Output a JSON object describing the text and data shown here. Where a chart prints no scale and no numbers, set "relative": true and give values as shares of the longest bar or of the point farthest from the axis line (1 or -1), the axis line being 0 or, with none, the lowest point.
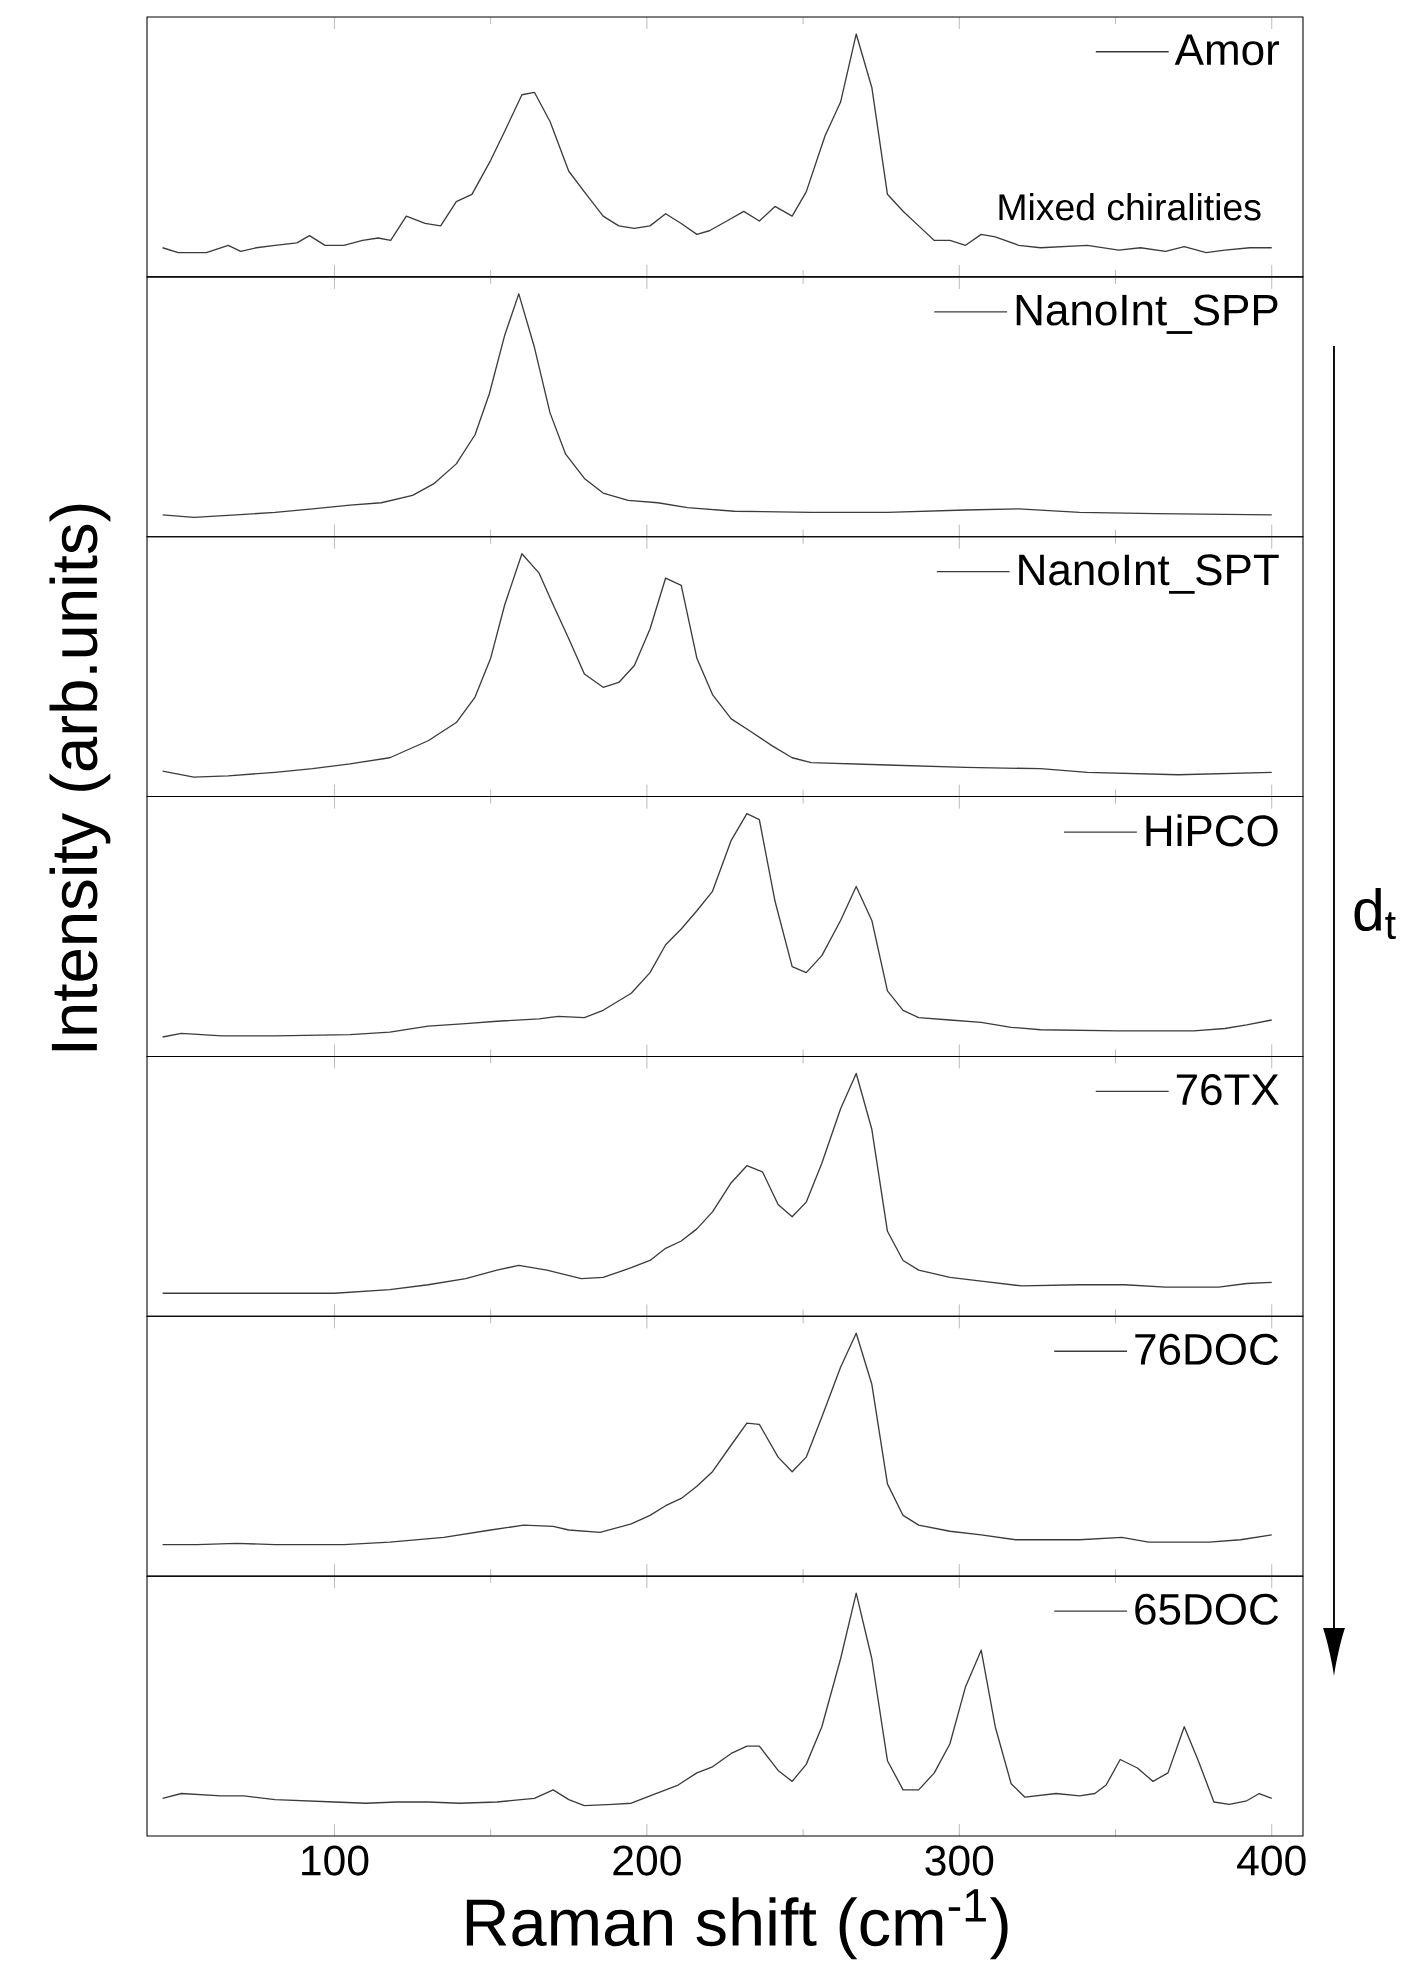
{
  "chart_data": [
    {
      "type": "line",
      "relative": true,
      "xlim": [
        40,
        410
      ],
      "xticks": [
        100,
        200,
        300,
        400
      ],
      "legend": "top right",
      "tick_labels": false,
      "annotations": [
        "Mixed chiralities"
      ],
      "series": [
        {
          "name": "Amor",
          "color": "#3c3c3c",
          "x": [
            45,
            50,
            59,
            66,
            70,
            75,
            81,
            88,
            92,
            97,
            103,
            109,
            114,
            118,
            123,
            129,
            134,
            139,
            144,
            150,
            154.5,
            160,
            164,
            169,
            175,
            180,
            186,
            191,
            196,
            201,
            206,
            211,
            216,
            220,
            225.6,
            231,
            236,
            241,
            246.5,
            251,
            257,
            262,
            267,
            272,
            277,
            282,
            287,
            292,
            297,
            302,
            307,
            311.5,
            319,
            326,
            341,
            351,
            358,
            366,
            372,
            379,
            385,
            393,
            400
          ],
          "values": [
            0.12,
            0.1,
            0.1,
            0.13,
            0.105,
            0.12,
            0.13,
            0.14,
            0.17,
            0.13,
            0.13,
            0.15,
            0.16,
            0.15,
            0.25,
            0.22,
            0.21,
            0.31,
            0.34,
            0.48,
            0.6,
            0.75,
            0.76,
            0.64,
            0.435,
            0.35,
            0.25,
            0.21,
            0.2,
            0.21,
            0.26,
            0.22,
            0.175,
            0.19,
            0.23,
            0.27,
            0.23,
            0.29,
            0.25,
            0.35,
            0.58,
            0.72,
            1.0,
            0.78,
            0.34,
            0.27,
            0.21,
            0.15,
            0.15,
            0.13,
            0.175,
            0.165,
            0.13,
            0.12,
            0.13,
            0.11,
            0.12,
            0.105,
            0.125,
            0.1,
            0.11,
            0.12,
            0.12
          ]
        }
      ]
    },
    {
      "type": "line",
      "relative": true,
      "xlim": [
        40,
        410
      ],
      "xticks": [
        100,
        200,
        300,
        400
      ],
      "legend": "top right",
      "tick_labels": false,
      "series": [
        {
          "name": "NanoInt_SPP",
          "color": "#3c3c3c",
          "x": [
            45,
            55,
            68.6,
            81,
            93,
            105,
            115,
            125,
            132,
            139,
            145,
            149.6,
            154.5,
            159,
            164,
            169,
            174,
            180,
            186,
            194,
            203.5,
            213,
            228,
            252.6,
            277,
            302,
            319,
            338.5,
            363,
            400
          ],
          "values": [
            0.09,
            0.08,
            0.09,
            0.1,
            0.115,
            0.13,
            0.14,
            0.17,
            0.22,
            0.3,
            0.42,
            0.59,
            0.83,
            1.0,
            0.78,
            0.51,
            0.34,
            0.24,
            0.18,
            0.15,
            0.14,
            0.12,
            0.105,
            0.1,
            0.1,
            0.11,
            0.115,
            0.1,
            0.095,
            0.09
          ]
        }
      ]
    },
    {
      "type": "line",
      "relative": true,
      "xlim": [
        40,
        410
      ],
      "xticks": [
        100,
        200,
        300,
        400
      ],
      "legend": "top right",
      "tick_labels": false,
      "series": [
        {
          "name": "NanoInt_SPT",
          "color": "#3c3c3c",
          "x": [
            45,
            55,
            66,
            81,
            93,
            105,
            117.7,
            130,
            139,
            145,
            150,
            154.5,
            160,
            165.5,
            170,
            175,
            180,
            186,
            191,
            196,
            201,
            206,
            211,
            216,
            221,
            227,
            233,
            240,
            246.5,
            252.6,
            277,
            302,
            326,
            341,
            370,
            400
          ],
          "values": [
            0.105,
            0.08,
            0.085,
            0.1,
            0.115,
            0.135,
            0.16,
            0.23,
            0.305,
            0.41,
            0.57,
            0.79,
            1.0,
            0.92,
            0.79,
            0.65,
            0.505,
            0.45,
            0.47,
            0.54,
            0.69,
            0.9,
            0.87,
            0.57,
            0.42,
            0.32,
            0.27,
            0.21,
            0.16,
            0.14,
            0.13,
            0.12,
            0.115,
            0.1,
            0.09,
            0.1
          ]
        }
      ]
    },
    {
      "type": "line",
      "relative": true,
      "xlim": [
        40,
        410
      ],
      "xticks": [
        100,
        200,
        300,
        400
      ],
      "legend": "top right",
      "tick_labels": false,
      "ylabel": "Intensity (arb.units)",
      "annotations": [
        "d$_{t}$"
      ],
      "series": [
        {
          "name": "HiPCO",
          "color": "#3c3c3c",
          "x": [
            45,
            51,
            64,
            81,
            105,
            117.7,
            130,
            142,
            152,
            165.5,
            171.6,
            180,
            186,
            195,
            201,
            206,
            211,
            216,
            221,
            227,
            232,
            236,
            241,
            246.5,
            251,
            256,
            262,
            267,
            272,
            277,
            282,
            287,
            297,
            307,
            316.6,
            326,
            351,
            375,
            385,
            392,
            400
          ],
          "values": [
            0.08,
            0.095,
            0.085,
            0.085,
            0.09,
            0.1,
            0.125,
            0.135,
            0.145,
            0.155,
            0.165,
            0.16,
            0.19,
            0.26,
            0.345,
            0.46,
            0.525,
            0.6,
            0.68,
            0.89,
            1.0,
            0.975,
            0.64,
            0.37,
            0.345,
            0.415,
            0.56,
            0.7,
            0.56,
            0.27,
            0.19,
            0.16,
            0.15,
            0.14,
            0.12,
            0.11,
            0.105,
            0.105,
            0.115,
            0.13,
            0.15
          ]
        }
      ]
    },
    {
      "type": "line",
      "relative": true,
      "xlim": [
        40,
        410
      ],
      "xticks": [
        100,
        200,
        300,
        400
      ],
      "legend": "top right",
      "tick_labels": false,
      "series": [
        {
          "name": "76TX",
          "color": "#3c3c3c",
          "x": [
            45,
            63,
            81,
            100,
            117.7,
            130,
            142,
            152,
            159,
            168,
            179,
            186,
            195,
            201,
            206,
            211,
            216,
            221,
            227,
            232,
            237,
            242,
            246.5,
            251,
            256,
            262,
            267,
            272,
            277,
            282,
            287,
            297,
            307,
            320,
            338.5,
            353,
            366,
            383,
            392,
            400
          ],
          "values": [
            0.095,
            0.095,
            0.095,
            0.095,
            0.11,
            0.13,
            0.155,
            0.19,
            0.21,
            0.19,
            0.155,
            0.16,
            0.2,
            0.23,
            0.28,
            0.31,
            0.36,
            0.43,
            0.55,
            0.62,
            0.595,
            0.46,
            0.41,
            0.47,
            0.63,
            0.855,
            1.0,
            0.77,
            0.35,
            0.23,
            0.19,
            0.16,
            0.145,
            0.125,
            0.13,
            0.13,
            0.12,
            0.12,
            0.135,
            0.14
          ]
        }
      ]
    },
    {
      "type": "line",
      "relative": true,
      "xlim": [
        40,
        410
      ],
      "xticks": [
        100,
        200,
        300,
        400
      ],
      "legend": "top right",
      "tick_labels": false,
      "series": [
        {
          "name": "76DOC",
          "color": "#3c3c3c",
          "x": [
            45,
            56,
            68.6,
            81,
            103,
            117.7,
            135,
            150,
            160.6,
            170,
            175,
            185,
            195,
            201,
            206,
            211,
            216,
            221,
            227,
            232,
            236,
            242,
            246.5,
            251,
            256,
            262,
            267,
            272,
            277,
            282,
            287,
            297,
            307,
            318,
            338.5,
            352,
            360.6,
            380,
            390,
            400
          ],
          "values": [
            0.13,
            0.13,
            0.135,
            0.13,
            0.13,
            0.14,
            0.16,
            0.19,
            0.21,
            0.205,
            0.19,
            0.18,
            0.215,
            0.25,
            0.29,
            0.32,
            0.37,
            0.43,
            0.54,
            0.63,
            0.625,
            0.49,
            0.43,
            0.49,
            0.655,
            0.86,
            1.0,
            0.79,
            0.38,
            0.25,
            0.21,
            0.185,
            0.17,
            0.15,
            0.15,
            0.16,
            0.14,
            0.14,
            0.15,
            0.17
          ]
        }
      ]
    },
    {
      "type": "line",
      "relative": true,
      "xlim": [
        40,
        410
      ],
      "xticks": [
        100,
        200,
        300,
        400
      ],
      "legend": "top right",
      "tick_labels": "x",
      "xlabel": "Raman shift (cm$^{-1}$)",
      "series": [
        {
          "name": "65DOC",
          "color": "#3c3c3c",
          "x": [
            45,
            51,
            63.7,
            71,
            81,
            100,
            110,
            120,
            130,
            140,
            152,
            164,
            170,
            175,
            180,
            189,
            195,
            201,
            210,
            216,
            221,
            227,
            232,
            236,
            242,
            246.5,
            251,
            256,
            262,
            267,
            272,
            277,
            282,
            287,
            292,
            297,
            302,
            307,
            311.5,
            316.6,
            321,
            331,
            338.5,
            343.4,
            347,
            351.5,
            357,
            362,
            366.8,
            372,
            376.5,
            381.5,
            386.4,
            392,
            396,
            400
          ],
          "values": [
            0.155,
            0.175,
            0.165,
            0.165,
            0.15,
            0.14,
            0.135,
            0.14,
            0.14,
            0.135,
            0.14,
            0.155,
            0.19,
            0.15,
            0.125,
            0.13,
            0.135,
            0.165,
            0.21,
            0.26,
            0.285,
            0.34,
            0.37,
            0.37,
            0.27,
            0.225,
            0.295,
            0.45,
            0.73,
            1.0,
            0.73,
            0.31,
            0.19,
            0.19,
            0.26,
            0.38,
            0.615,
            0.765,
            0.45,
            0.215,
            0.16,
            0.175,
            0.165,
            0.175,
            0.21,
            0.315,
            0.28,
            0.225,
            0.26,
            0.45,
            0.31,
            0.14,
            0.13,
            0.145,
            0.175,
            0.155
          ]
        }
      ]
    }
  ]
}
